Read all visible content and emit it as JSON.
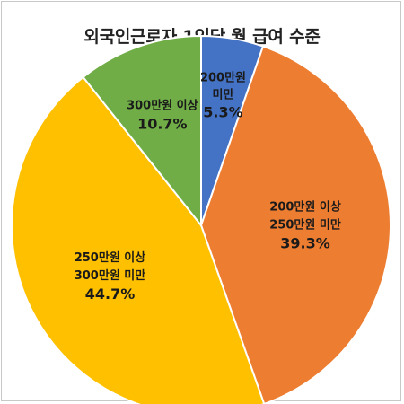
{
  "chart_data": {
    "type": "pie",
    "title": "외국인근로자 1인당 월 급여 수준",
    "slices": [
      {
        "label_lines": [
          "200만원",
          "미만"
        ],
        "value": 5.3,
        "pct_label": "5.3%",
        "color": "#4472C4"
      },
      {
        "label_lines": [
          "200만원 이상",
          "250만원 미만"
        ],
        "value": 39.3,
        "pct_label": "39.3%",
        "color": "#ED7D31"
      },
      {
        "label_lines": [
          "250만원 이상",
          "300만원 미만"
        ],
        "value": 44.7,
        "pct_label": "44.7%",
        "color": "#FFC000"
      },
      {
        "label_lines": [
          "300만원 이상"
        ],
        "value": 10.7,
        "pct_label": "10.7%",
        "color": "#70AD47"
      }
    ]
  }
}
